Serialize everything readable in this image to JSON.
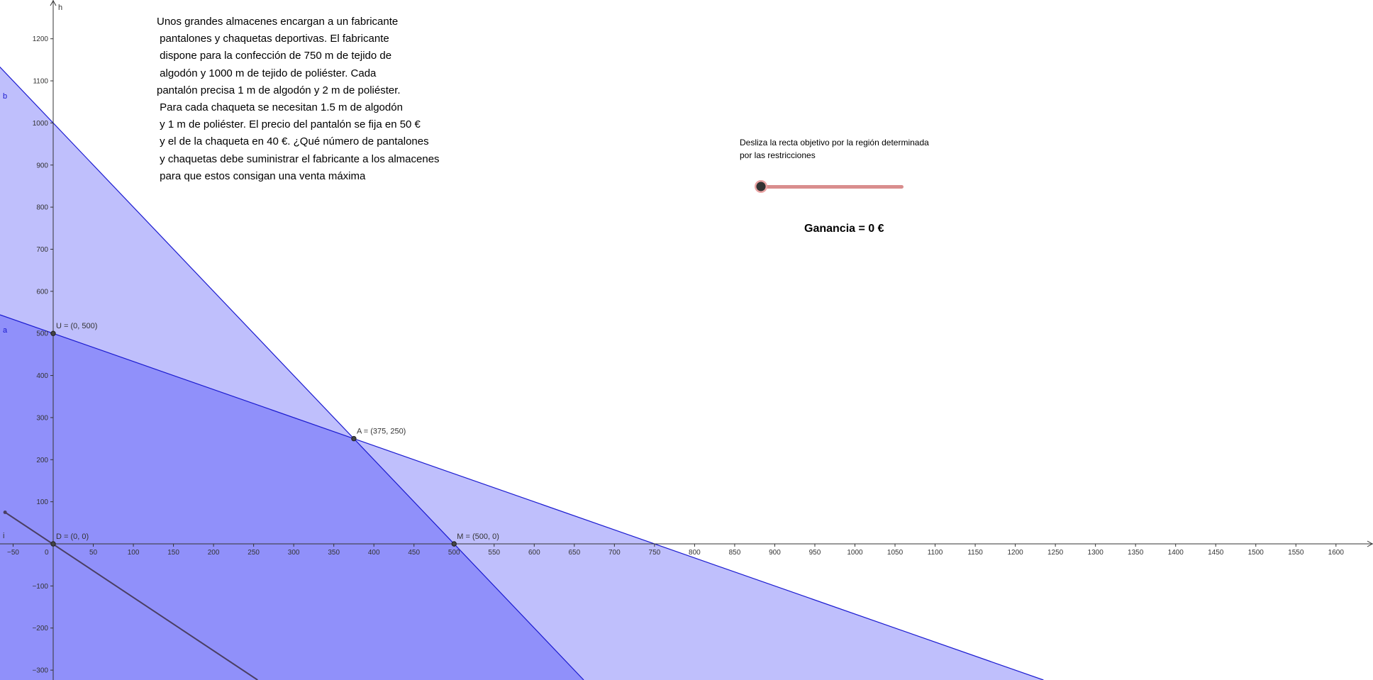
{
  "problem": {
    "lines": [
      "Unos grandes almacenes encargan a un fabricante",
      " pantalones y chaquetas deportivas. El fabricante",
      " dispone para la confección de 750 m de tejido de",
      " algodón y 1000 m de tejido de poliéster. Cada",
      "pantalón precisa 1 m de algodón y 2 m de poliéster.",
      " Para cada chaqueta se necesitan 1.5 m de algodón",
      " y 1 m de poliéster. El precio del pantalón se fija en 50 €",
      " y el de la chaqueta en 40 €. ¿Qué número de pantalones",
      " y chaquetas debe suministrar el fabricante a los almacenes",
      " para que estos consigan una venta máxima"
    ]
  },
  "instruction": {
    "line1": "Desliza la recta objetivo por la región determinada",
    "line2": "por las restricciones"
  },
  "slider": {
    "value": 0
  },
  "profit_label": "Ganancia = 0 €",
  "colors": {
    "region_light": "#bfbffc",
    "region_dark": "#9090fa",
    "constraint_line": "#1a1ad0",
    "objective_line": "#4a3f63",
    "slider_track": "#d98d8d"
  },
  "axes": {
    "y_label": "h",
    "origin_label": "0",
    "x_ticks": [
      -50,
      50,
      100,
      150,
      200,
      250,
      300,
      350,
      400,
      450,
      500,
      550,
      600,
      650,
      700,
      750,
      800,
      850,
      900,
      950,
      1000,
      1050,
      1100,
      1150,
      1200,
      1250,
      1300,
      1350,
      1400,
      1450,
      1500,
      1550,
      1600
    ],
    "y_ticks": [
      1200,
      1100,
      1000,
      900,
      800,
      700,
      600,
      500,
      400,
      300,
      200,
      100,
      -100,
      -200,
      -300
    ]
  },
  "line_labels": {
    "b": "b",
    "a": "a",
    "i": "i"
  },
  "points": [
    {
      "name": "U",
      "label": "U = (0, 500)",
      "x": 0,
      "y": 500
    },
    {
      "name": "A",
      "label": "A = (375, 250)",
      "x": 375,
      "y": 250
    },
    {
      "name": "D",
      "label": "D = (0, 0)",
      "x": 0,
      "y": 0
    },
    {
      "name": "M",
      "label": "M = (500, 0)",
      "x": 500,
      "y": 0
    }
  ]
}
